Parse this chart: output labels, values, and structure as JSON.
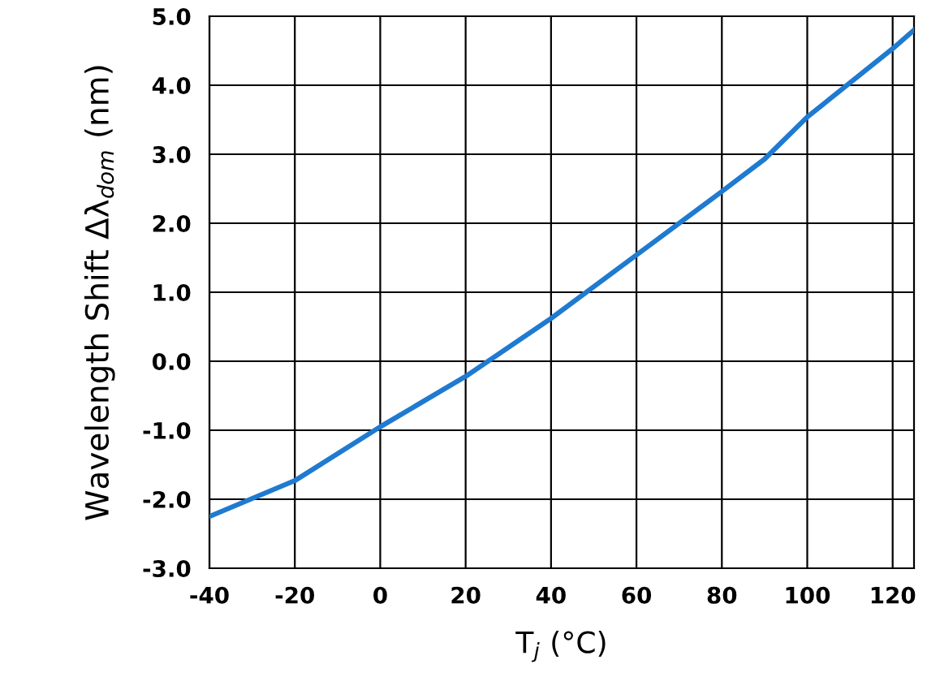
{
  "chart_data": {
    "type": "line",
    "xlabel": "T$_{j}$ (°C)",
    "ylabel": "Wavelength Shift Δλ$_{dom}$ (nm)",
    "x": [
      -40,
      -20,
      0,
      20,
      40,
      60,
      80,
      90,
      100,
      120,
      125
    ],
    "series": [
      {
        "color": "#1f7ad0",
        "values": [
          -2.25,
          -1.73,
          -0.95,
          -0.22,
          0.62,
          1.54,
          2.46,
          2.93,
          3.54,
          4.53,
          4.8
        ]
      }
    ],
    "xlim": [
      -40,
      125
    ],
    "xticks": [
      -40,
      -20,
      0,
      20,
      40,
      60,
      80,
      100,
      120
    ],
    "ylim": [
      -3,
      5
    ],
    "yticks": [
      {
        "value": -3,
        "label": "-3.0"
      },
      {
        "value": -2,
        "label": "-2.0"
      },
      {
        "value": -1,
        "label": "-1.0"
      },
      {
        "value": 0,
        "label": "0.0"
      },
      {
        "value": 1,
        "label": "1.0"
      },
      {
        "value": 2,
        "label": "2.0"
      },
      {
        "value": 3,
        "label": "3.0"
      },
      {
        "value": 4,
        "label": "4.0"
      },
      {
        "value": 5,
        "label": "5.0"
      }
    ],
    "grid": true,
    "marker": "none",
    "line_style": "solid"
  }
}
